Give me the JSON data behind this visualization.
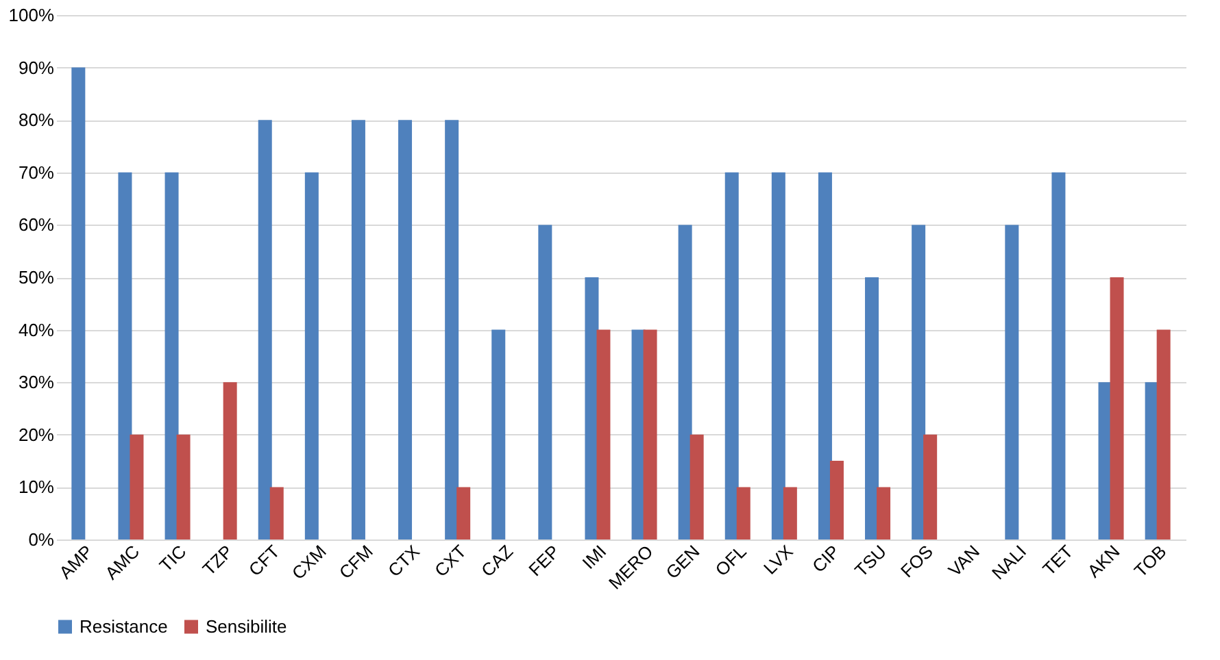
{
  "chart_data": {
    "type": "bar",
    "categories": [
      "AMP",
      "AMC",
      "TIC",
      "TZP",
      "CFT",
      "CXM",
      "CFM",
      "CTX",
      "CXT",
      "CAZ",
      "FEP",
      "IMI",
      "MERO",
      "GEN",
      "OFL",
      "LVX",
      "CIP",
      "TSU",
      "FOS",
      "VAN",
      "NALI",
      "TET",
      "AKN",
      "TOB"
    ],
    "series": [
      {
        "name": "Resistance",
        "color": "#4f81bd",
        "values": [
          90,
          70,
          70,
          null,
          80,
          70,
          80,
          80,
          80,
          40,
          60,
          50,
          40,
          60,
          70,
          70,
          70,
          50,
          60,
          null,
          60,
          70,
          30,
          30
        ]
      },
      {
        "name": "Sensibilite",
        "color": "#c0504d",
        "values": [
          null,
          20,
          20,
          30,
          10,
          null,
          null,
          null,
          10,
          null,
          null,
          40,
          40,
          20,
          10,
          10,
          15,
          10,
          20,
          null,
          null,
          null,
          50,
          40
        ]
      }
    ],
    "ylim": [
      0,
      100
    ],
    "yticks": [
      {
        "value": 0,
        "label": "0%"
      },
      {
        "value": 10,
        "label": "10%"
      },
      {
        "value": 20,
        "label": "20%"
      },
      {
        "value": 30,
        "label": "30%"
      },
      {
        "value": 40,
        "label": "40%"
      },
      {
        "value": 50,
        "label": "50%"
      },
      {
        "value": 60,
        "label": "60%"
      },
      {
        "value": 70,
        "label": "70%"
      },
      {
        "value": 80,
        "label": "80%"
      },
      {
        "value": 90,
        "label": "90%"
      },
      {
        "value": 100,
        "label": "100%"
      }
    ],
    "grid": "y",
    "legend": "bottom"
  }
}
